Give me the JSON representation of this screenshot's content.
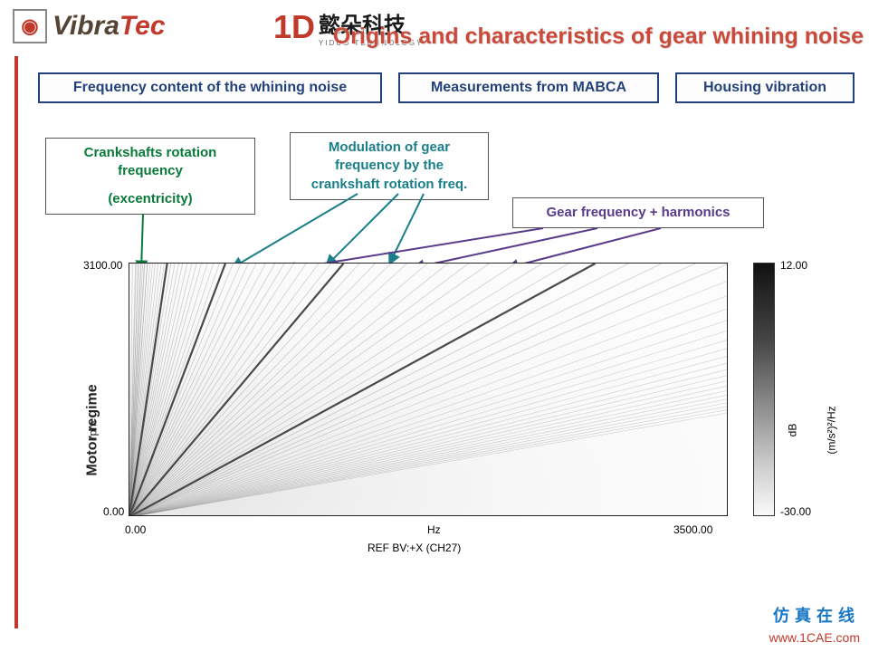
{
  "logos": {
    "vibratec_glyph": "◉",
    "vibratec_part1": "Vibra",
    "vibratec_part2": "Tec",
    "yiduo_glyph": "1D",
    "yiduo_cn": "懿朵科技",
    "yiduo_en": "YIDUO TECHNOLOGY"
  },
  "slide_title": "Origins and characteristics of gear whining noise",
  "boxes": {
    "freq_content": "Frequency content of the whining noise",
    "measurements": "Measurements from MABCA",
    "housing": "Housing vibration"
  },
  "callouts": {
    "green_line1": "Crankshafts rotation frequency",
    "green_line2": "(excentricity)",
    "teal": "Modulation of gear frequency by the crankshaft rotation freq.",
    "purple": "Gear frequency + harmonics",
    "arrow_color_green": "#0a7a3a",
    "arrow_color_teal": "#1a7f88",
    "arrow_color_purple": "#5a3a8a"
  },
  "spectrogram": {
    "type": "order-spectrogram",
    "x_axis": {
      "label": "Hz",
      "min": 0.0,
      "max": 3500.0,
      "tick_min_text": "0.00",
      "tick_max_text": "3500.00"
    },
    "y_axis": {
      "label_outer": "Motor regime",
      "label_inner": "rpm",
      "min": 0.0,
      "max": 3100.0,
      "tick_min_text": "0.00",
      "tick_max_text": "3100.00"
    },
    "ref_text": "REF  BV:+X (CH27)",
    "colorbar": {
      "min": -30.0,
      "max": 12.0,
      "min_text": "-30.00",
      "max_text": "12.00",
      "label1": "dB",
      "label2": "(m/s²)²/Hz",
      "gradient_stops": [
        "#111111",
        "#444444",
        "#888888",
        "#cccccc",
        "#fafafa"
      ]
    },
    "order_lines": {
      "description": "diagonal constant-order lines radiating from origin; darker = higher amplitude",
      "orders_at_3100rpm_hz": [
        40,
        90,
        150,
        220,
        310,
        420,
        560,
        740,
        960,
        1250,
        1620,
        2100,
        2720,
        3500
      ],
      "line_color": "#7a7a7a",
      "strong_line_color": "#2a2a2a",
      "strong_orders_hz": [
        220,
        560,
        1250,
        2720
      ],
      "modulation_cluster_center_hz": 380,
      "crank_order_hz": 52
    },
    "plot_bg": "#fcfcfc",
    "border_color": "#222222"
  },
  "watermark": {
    "cn": "仿真在线",
    "url": "www.1CAE.com"
  }
}
